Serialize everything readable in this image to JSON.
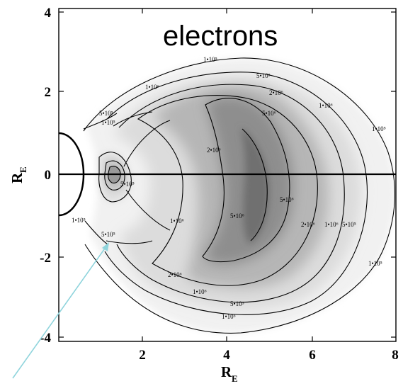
{
  "chart_data": {
    "type": "heatmap",
    "title": "electrons",
    "xlabel": "R",
    "xlabel_sub": "E",
    "ylabel": "R",
    "ylabel_sub": "E",
    "xlim": [
      0,
      8
    ],
    "ylim": [
      -4.2,
      4.2
    ],
    "x_ticks": [
      2,
      4,
      6,
      8
    ],
    "y_ticks": [
      4,
      2,
      0,
      -2,
      -4
    ],
    "colormap": "white-to-dark-gray",
    "contour_labels": [
      "1•10⁵",
      "5•10⁵",
      "1•10⁶",
      "2•10⁶",
      "5•10⁶"
    ],
    "colors": {
      "line": "#000000",
      "arrow": "#8fd4dc"
    }
  }
}
